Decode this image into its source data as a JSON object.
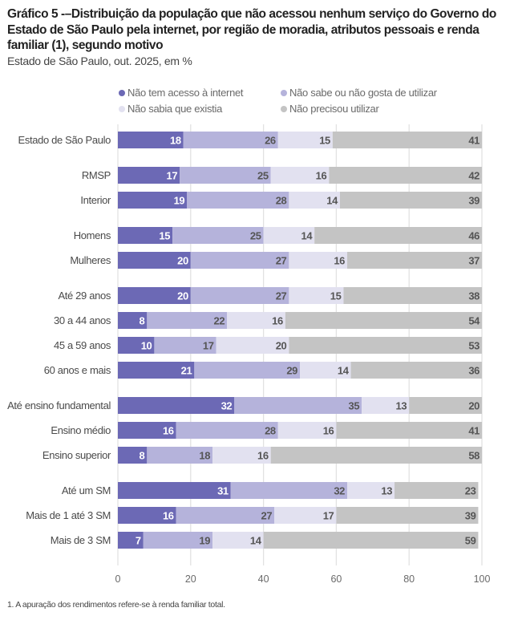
{
  "title": "Gráfico 5 -–Distribuição da população que não acessou nenhum serviço do Governo do Estado de São Paulo pela internet, por região de moradia, atributos pessoais e renda familiar (1), segundo motivo",
  "subtitle": "Estado de São Paulo, out. 2025, em %",
  "footnote": "1. A apuração dos rendimentos refere-se à renda familiar total.",
  "chart_data": {
    "type": "bar",
    "orientation": "horizontal",
    "stacked": true,
    "title": "Gráfico 5 -–Distribuição da população que não acessou nenhum serviço do Governo do Estado de São Paulo pela internet, por região de moradia, atributos pessoais e renda familiar (1), segundo motivo",
    "subtitle": "Estado de São Paulo, out. 2025, em %",
    "xlabel": "",
    "ylabel": "",
    "xlim": [
      0,
      100
    ],
    "xticks": [
      0,
      20,
      40,
      60,
      80,
      100
    ],
    "grid": true,
    "legend_position": "top",
    "groups": [
      [
        "Estado de São Paulo"
      ],
      [
        "RMSP",
        "Interior"
      ],
      [
        "Homens",
        "Mulheres"
      ],
      [
        "Até 29 anos",
        "30 a 44 anos",
        "45 a 59 anos",
        "60 anos e mais"
      ],
      [
        "Até ensino fundamental",
        "Ensino médio",
        "Ensino superior"
      ],
      [
        "Até um SM",
        "Mais de 1 até 3 SM",
        "Mais de 3 SM"
      ]
    ],
    "categories": [
      "Estado de São Paulo",
      "RMSP",
      "Interior",
      "Homens",
      "Mulheres",
      "Até 29 anos",
      "30 a 44 anos",
      "45 a 59 anos",
      "60 anos e mais",
      "Até ensino fundamental",
      "Ensino médio",
      "Ensino superior",
      "Até um SM",
      "Mais de 1 até 3 SM",
      "Mais de 3 SM"
    ],
    "series": [
      {
        "name": "Não tem acesso à internet",
        "color": "#6c69b5",
        "label_color": "#ffffff",
        "values": [
          18,
          17,
          19,
          15,
          20,
          20,
          8,
          10,
          21,
          32,
          16,
          8,
          31,
          16,
          7
        ]
      },
      {
        "name": "Não sabe ou não gosta de utilizar",
        "color": "#b5b3db",
        "label_color": "#555555",
        "values": [
          26,
          25,
          28,
          25,
          27,
          27,
          22,
          17,
          29,
          35,
          28,
          18,
          32,
          27,
          19
        ]
      },
      {
        "name": "Não sabia que existia",
        "color": "#e2e1f0",
        "label_color": "#555555",
        "values": [
          15,
          16,
          14,
          14,
          16,
          15,
          16,
          20,
          14,
          13,
          16,
          16,
          13,
          17,
          14
        ]
      },
      {
        "name": "Não precisou utilizar",
        "color": "#c4c4c4",
        "label_color": "#555555",
        "values": [
          41,
          42,
          39,
          46,
          37,
          38,
          54,
          53,
          36,
          20,
          41,
          58,
          23,
          39,
          59
        ]
      }
    ]
  }
}
